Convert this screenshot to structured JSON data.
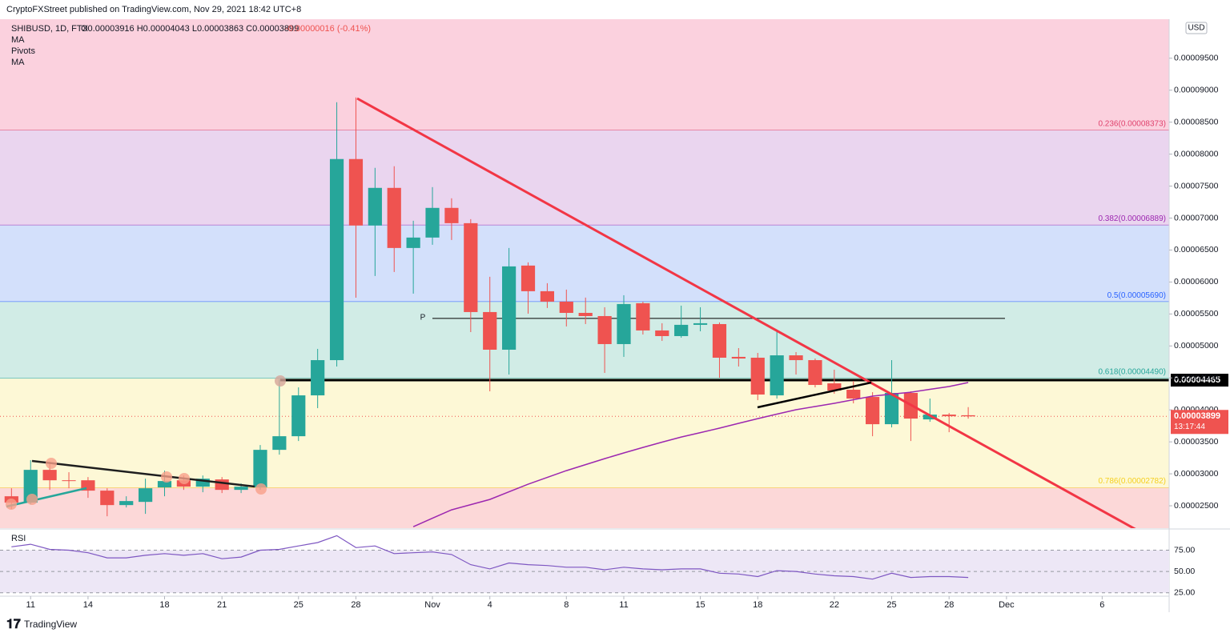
{
  "header": {
    "published": "CryptoFXStreet published on TradingView.com, Nov 29, 2021 18:42 UTC+8",
    "symbol": "SHIBUSD, 1D, FTX",
    "ohlc": "O0.00003916 H0.00004043 L0.00003863 C0.00003899",
    "change": "-0.00000016 (-0.41%)",
    "indicators": [
      "MA",
      "Pivots",
      "MA"
    ],
    "currency": "USD",
    "brand": "TradingView"
  },
  "chart_data": [
    {
      "type": "candlestick",
      "x": [
        0,
        1,
        2,
        3,
        4,
        5,
        6,
        7,
        8,
        9,
        10,
        11,
        12,
        13,
        14,
        15,
        16,
        17,
        18,
        19,
        20,
        21,
        22,
        23,
        24,
        25,
        26,
        27,
        28,
        29,
        30,
        31,
        32,
        33,
        34,
        35,
        36,
        37,
        38,
        39,
        40,
        41,
        42,
        43,
        44,
        45,
        46,
        47,
        48,
        49,
        50
      ],
      "open": [
        2.649e-05,
        2.549e-05,
        3.062e-05,
        2.899e-05,
        2.899e-05,
        2.737e-05,
        2.511e-05,
        2.561e-05,
        2.787e-05,
        2.899e-05,
        2.799e-05,
        2.912e-05,
        2.749e-05,
        2.787e-05,
        3.375e-05,
        3.588e-05,
        4.227e-05,
        4.778e-05,
        7.923e-05,
        6.883e-05,
        7.472e-05,
        6.532e-05,
        6.695e-05,
        7.159e-05,
        6.92e-05,
        5.53e-05,
        4.941e-05,
        6.257e-05,
        5.856e-05,
        5.693e-05,
        5.517e-05,
        5.467e-05,
        5.029e-05,
        5.668e-05,
        5.242e-05,
        5.154e-05,
        5.33e-05,
        5.342e-05,
        4.829e-05,
        4.816e-05,
        4.227e-05,
        4.853e-05,
        4.778e-05,
        4.415e-05,
        4.315e-05,
        4.202e-05,
        3.776e-05,
        4.265e-05,
        3.851e-05,
        3.926e-05,
        3.916e-05
      ],
      "high": [
        2.774e-05,
        3.213e-05,
        3.187e-05,
        3.025e-05,
        2.949e-05,
        2.774e-05,
        2.649e-05,
        2.924e-05,
        3.05e-05,
        2.974e-05,
        2.974e-05,
        2.949e-05,
        2.849e-05,
        3.45e-05,
        4.478e-05,
        4.352e-05,
        4.954e-05,
        8.812e-05,
        8.887e-05,
        7.785e-05,
        7.81e-05,
        6.958e-05,
        7.484e-05,
        7.309e-05,
        6.983e-05,
        6.081e-05,
        6.532e-05,
        6.307e-05,
        5.981e-05,
        5.881e-05,
        5.756e-05,
        5.605e-05,
        5.793e-05,
        5.693e-05,
        5.355e-05,
        5.63e-05,
        5.605e-05,
        5.367e-05,
        4.966e-05,
        4.891e-05,
        5.229e-05,
        4.904e-05,
        4.803e-05,
        4.628e-05,
        4.453e-05,
        4.277e-05,
        4.778e-05,
        4.29e-05,
        4.177e-05,
        3.951e-05,
        4.043e-05
      ],
      "low": [
        2.449e-05,
        2.524e-05,
        2.749e-05,
        2.774e-05,
        2.624e-05,
        2.336e-05,
        2.474e-05,
        2.374e-05,
        2.649e-05,
        2.749e-05,
        2.712e-05,
        2.699e-05,
        2.699e-05,
        2.749e-05,
        3.3e-05,
        3.513e-05,
        4.027e-05,
        4.678e-05,
        5.755e-05,
        6.094e-05,
        6.156e-05,
        5.818e-05,
        6.582e-05,
        6.657e-05,
        5.217e-05,
        4.29e-05,
        4.553e-05,
        5.505e-05,
        5.593e-05,
        5.305e-05,
        5.342e-05,
        4.578e-05,
        4.829e-05,
        5.179e-05,
        5.079e-05,
        5.129e-05,
        5.229e-05,
        4.503e-05,
        4.678e-05,
        4.152e-05,
        4.177e-05,
        4.553e-05,
        4.352e-05,
        4.252e-05,
        4.102e-05,
        3.588e-05,
        3.726e-05,
        3.513e-05,
        3.814e-05,
        3.651e-05,
        3.863e-05
      ],
      "close": [
        2.549e-05,
        3.062e-05,
        2.899e-05,
        2.887e-05,
        2.737e-05,
        2.511e-05,
        2.574e-05,
        2.774e-05,
        2.887e-05,
        2.799e-05,
        2.924e-05,
        2.749e-05,
        2.799e-05,
        3.375e-05,
        3.588e-05,
        4.227e-05,
        4.778e-05,
        7.923e-05,
        6.883e-05,
        7.472e-05,
        6.532e-05,
        6.695e-05,
        7.159e-05,
        6.92e-05,
        5.53e-05,
        4.941e-05,
        6.244e-05,
        5.856e-05,
        5.693e-05,
        5.517e-05,
        5.467e-05,
        5.029e-05,
        5.655e-05,
        5.242e-05,
        5.154e-05,
        5.33e-05,
        5.355e-05,
        4.816e-05,
        4.803e-05,
        4.24e-05,
        4.853e-05,
        4.778e-05,
        4.39e-05,
        4.302e-05,
        4.177e-05,
        3.776e-05,
        4.265e-05,
        3.864e-05,
        3.926e-05,
        3.901e-05,
        3.899e-05
      ],
      "up_color": "#26a69a",
      "down_color": "#ef5350",
      "ma": {
        "name": "MA",
        "color": "#9c27b0",
        "values": [
          null,
          null,
          null,
          null,
          null,
          null,
          null,
          null,
          null,
          null,
          null,
          null,
          null,
          null,
          null,
          null,
          null,
          null,
          null,
          null,
          null,
          2.173e-05,
          2.305e-05,
          2.436e-05,
          2.518e-05,
          2.599e-05,
          2.718e-05,
          2.837e-05,
          2.944e-05,
          3.05e-05,
          3.144e-05,
          3.238e-05,
          3.326e-05,
          3.413e-05,
          3.495e-05,
          3.576e-05,
          3.645e-05,
          3.714e-05,
          3.789e-05,
          3.864e-05,
          3.933e-05,
          4.002e-05,
          4.052e-05,
          4.102e-05,
          4.159e-05,
          4.215e-05,
          4.246e-05,
          4.277e-05,
          4.321e-05,
          4.365e-05,
          4.428e-05
        ]
      },
      "fib_levels": [
        {
          "label": "0.236(0.00008373)",
          "value": 8.373e-05,
          "line_color": "#e0436e",
          "band_color": "#fbd1de"
        },
        {
          "label": "0.382(0.00006889)",
          "value": 6.889e-05,
          "line_color": "#9c27b0",
          "band_color": "#ead5ef"
        },
        {
          "label": "0.5(0.00005690)",
          "value": 5.69e-05,
          "line_color": "#2962ff",
          "band_color": "#d3e0fb"
        },
        {
          "label": "0.618(0.00004490)",
          "value": 4.49e-05,
          "line_color": "#26a69a",
          "band_color": "#d1ece6"
        },
        {
          "label": "0.786(0.00002782)",
          "value": 2.782e-05,
          "line_color": "#f5d020",
          "band_color": "#fdf8d6"
        }
      ],
      "bottom_band_color": "#fcd8d8",
      "pivot": {
        "label": "P",
        "value": 5.43e-05
      },
      "level_line": {
        "value": 4.465e-05
      },
      "last_price": {
        "value": 3.899e-05,
        "countdown": "13:17:44"
      },
      "xlim": [
        -0.6,
        60.5
      ],
      "xticks": [
        {
          "value": 1,
          "label": "11"
        },
        {
          "value": 4,
          "label": "14"
        },
        {
          "value": 8,
          "label": "18"
        },
        {
          "value": 11,
          "label": "21"
        },
        {
          "value": 15,
          "label": "25"
        },
        {
          "value": 18,
          "label": "28"
        },
        {
          "value": 22,
          "label": "Nov"
        },
        {
          "value": 25,
          "label": "4"
        },
        {
          "value": 29,
          "label": "8"
        },
        {
          "value": 32,
          "label": "11"
        },
        {
          "value": 36,
          "label": "15"
        },
        {
          "value": 39,
          "label": "18"
        },
        {
          "value": 43,
          "label": "22"
        },
        {
          "value": 46,
          "label": "25"
        },
        {
          "value": 49,
          "label": "28"
        },
        {
          "value": 52,
          "label": "Dec"
        },
        {
          "value": 57,
          "label": "6"
        }
      ],
      "ylim": [
        2.15e-05,
        0.0001011
      ],
      "yticks": [
        {
          "value": 2.5e-05,
          "label": "0.00002500"
        },
        {
          "value": 3e-05,
          "label": "0.00003000"
        },
        {
          "value": 3.5e-05,
          "label": "0.00003500"
        },
        {
          "value": 4e-05,
          "label": "0.00004000"
        },
        {
          "value": 4.5e-05,
          "label": "0.00004500"
        },
        {
          "value": 5e-05,
          "label": "0.00005000"
        },
        {
          "value": 5.5e-05,
          "label": "0.00005500"
        },
        {
          "value": 6e-05,
          "label": "0.00006000"
        },
        {
          "value": 6.5e-05,
          "label": "0.00006500"
        },
        {
          "value": 7e-05,
          "label": "0.00007000"
        },
        {
          "value": 7.5e-05,
          "label": "0.00007500"
        },
        {
          "value": 8e-05,
          "label": "0.00008000"
        },
        {
          "value": 8.5e-05,
          "label": "0.00008500"
        },
        {
          "value": 9e-05,
          "label": "0.00009000"
        },
        {
          "value": 9.5e-05,
          "label": "0.00009500"
        }
      ],
      "grid": false
    },
    {
      "type": "line",
      "title": "RSI",
      "color": "#7e57c2",
      "x": [
        0,
        1,
        2,
        3,
        4,
        5,
        6,
        7,
        8,
        9,
        10,
        11,
        12,
        13,
        14,
        15,
        16,
        17,
        18,
        19,
        20,
        21,
        22,
        23,
        24,
        25,
        26,
        27,
        28,
        29,
        30,
        31,
        32,
        33,
        34,
        35,
        36,
        37,
        38,
        39,
        40,
        41,
        42,
        43,
        44,
        45,
        46,
        47,
        48,
        49,
        50
      ],
      "values": [
        79,
        82,
        76,
        75,
        72,
        66,
        66,
        69,
        71,
        69,
        71,
        65,
        67,
        75,
        76,
        80,
        84,
        92,
        78,
        80,
        71,
        72,
        73,
        70,
        58,
        53,
        60,
        58,
        57,
        55,
        55,
        52,
        55,
        53,
        52,
        53,
        53,
        48,
        47,
        44,
        51,
        50,
        47,
        45,
        44,
        41,
        48,
        43,
        44,
        44,
        43
      ],
      "band_color": "#ede7f6",
      "xlim": [
        -0.6,
        60.5
      ],
      "ylim": [
        21,
        99
      ],
      "yticks": [
        {
          "value": 75,
          "label": "75.00"
        },
        {
          "value": 50,
          "label": "50.00"
        },
        {
          "value": 25,
          "label": "25.00"
        }
      ]
    }
  ]
}
